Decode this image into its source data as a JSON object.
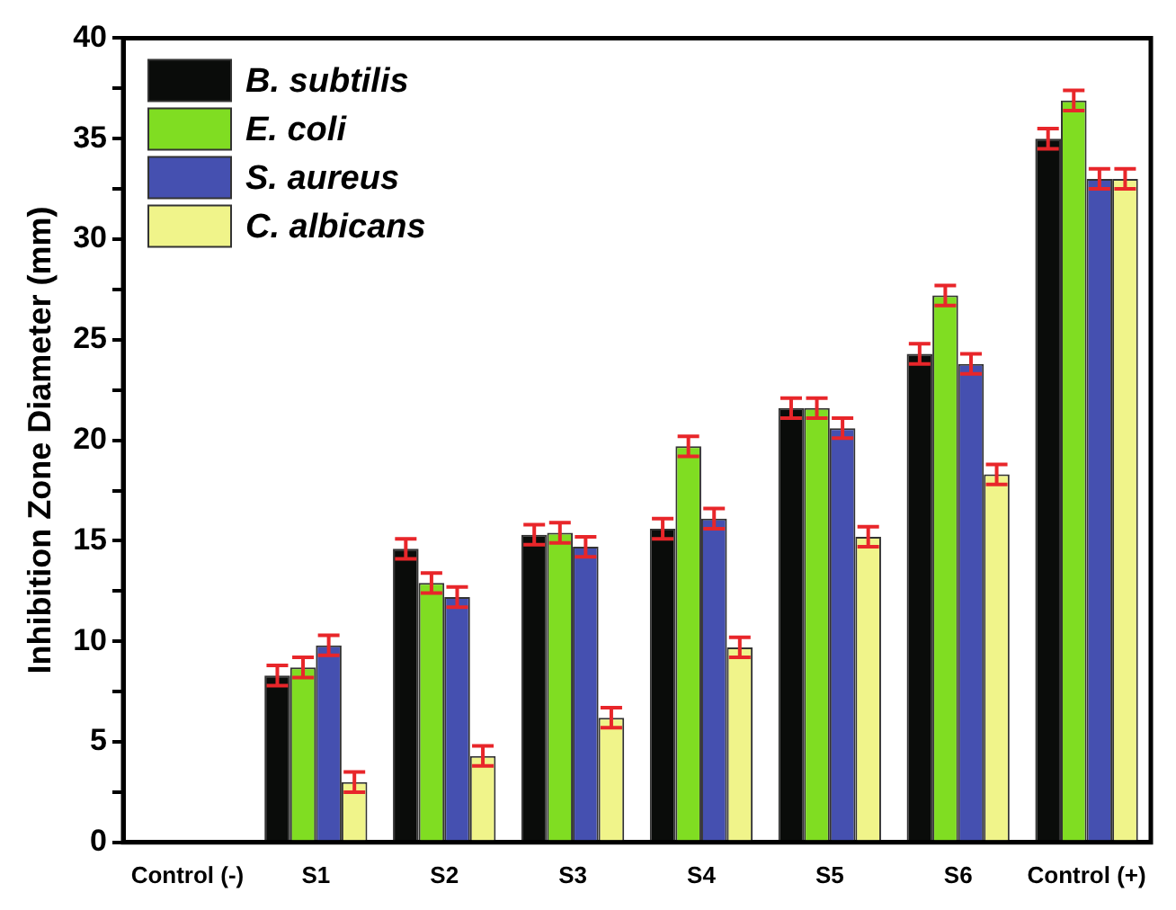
{
  "chart_data": {
    "type": "bar",
    "ylabel": "Inhibition Zone Diameter (mm)",
    "categories": [
      "Control (-)",
      "S1",
      "S2",
      "S3",
      "S4",
      "S5",
      "S6",
      "Control (+)"
    ],
    "series": [
      {
        "name": "B. subtilis",
        "color": "#0a0c0a",
        "values": [
          0,
          8.3,
          14.6,
          15.3,
          15.6,
          21.6,
          24.3,
          35.0
        ],
        "errors": [
          null,
          0.5,
          0.5,
          0.5,
          0.5,
          0.5,
          0.5,
          0.5
        ]
      },
      {
        "name": "E. coli",
        "color": "#80dd22",
        "values": [
          0,
          8.7,
          12.9,
          15.4,
          19.7,
          21.6,
          27.2,
          36.9
        ],
        "errors": [
          null,
          0.5,
          0.5,
          0.5,
          0.5,
          0.5,
          0.5,
          0.5
        ]
      },
      {
        "name": "S. aureus",
        "color": "#4550b0",
        "values": [
          0,
          9.8,
          12.2,
          14.7,
          16.1,
          20.6,
          23.8,
          33.0
        ],
        "errors": [
          null,
          0.5,
          0.5,
          0.5,
          0.5,
          0.5,
          0.5,
          0.5
        ]
      },
      {
        "name": "C. albicans",
        "color": "#f0f48a",
        "values": [
          0,
          3.0,
          4.3,
          6.2,
          9.7,
          15.2,
          18.3,
          33.0
        ],
        "errors": [
          null,
          0.5,
          0.5,
          0.5,
          0.5,
          0.5,
          0.5,
          0.5
        ]
      }
    ],
    "ylim": [
      0,
      40
    ],
    "yticks": [
      0,
      {
        "value": 2.5,
        "label": null
      },
      5,
      {
        "value": 7.5,
        "label": null
      },
      10,
      {
        "value": 12.5,
        "label": null
      },
      15,
      {
        "value": 17.5,
        "label": null
      },
      20,
      {
        "value": 22.5,
        "label": null
      },
      25,
      {
        "value": 27.5,
        "label": null
      },
      30,
      {
        "value": 32.5,
        "label": null
      },
      35,
      {
        "value": 37.5,
        "label": null
      },
      40
    ],
    "grid": false,
    "legend": "top left"
  }
}
